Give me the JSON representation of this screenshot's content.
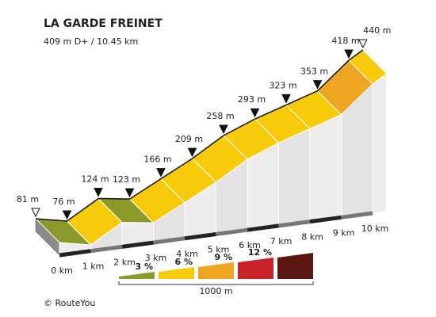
{
  "chart_data": {
    "type": "elevation",
    "title": "LA GARDE FREINET",
    "subtitle": "409 m D+ / 10.45 km",
    "x": [
      0,
      1,
      2,
      3,
      4,
      5,
      6,
      7,
      8,
      9,
      10,
      10.45
    ],
    "values": [
      81,
      76,
      124,
      123,
      166,
      209,
      258,
      293,
      323,
      353,
      418,
      440
    ],
    "value_labels": [
      "81 m",
      "76 m",
      "124 m",
      "123 m",
      "166 m",
      "209 m",
      "258 m",
      "293 m",
      "323 m",
      "353 m",
      "418 m",
      "440 m"
    ],
    "xticks": [
      {
        "value": 0,
        "label": "0 km"
      },
      {
        "value": 1,
        "label": "1 km"
      },
      {
        "value": 2,
        "label": "2 km"
      },
      {
        "value": 3,
        "label": "3 km"
      },
      {
        "value": 4,
        "label": "4 km"
      },
      {
        "value": 5,
        "label": "5 km"
      },
      {
        "value": 6,
        "label": "6 km"
      },
      {
        "value": 7,
        "label": "7 km"
      },
      {
        "value": 8,
        "label": "8 km"
      },
      {
        "value": 9,
        "label": "9 km"
      },
      {
        "value": 10,
        "label": "10 km"
      }
    ],
    "grade_legend": {
      "thresholds": [
        {
          "value": 3,
          "label": "3 %"
        },
        {
          "value": 6,
          "label": "6 %"
        },
        {
          "value": 9,
          "label": "9 %"
        },
        {
          "value": 12,
          "label": "12 %"
        }
      ],
      "colors": [
        "#8c9a2c",
        "#f7cb0a",
        "#eea522",
        "#c9242c",
        "#5a1712"
      ],
      "scale": {
        "value": 1000,
        "label": "1000 m"
      }
    },
    "footer": "© RouteYou"
  }
}
